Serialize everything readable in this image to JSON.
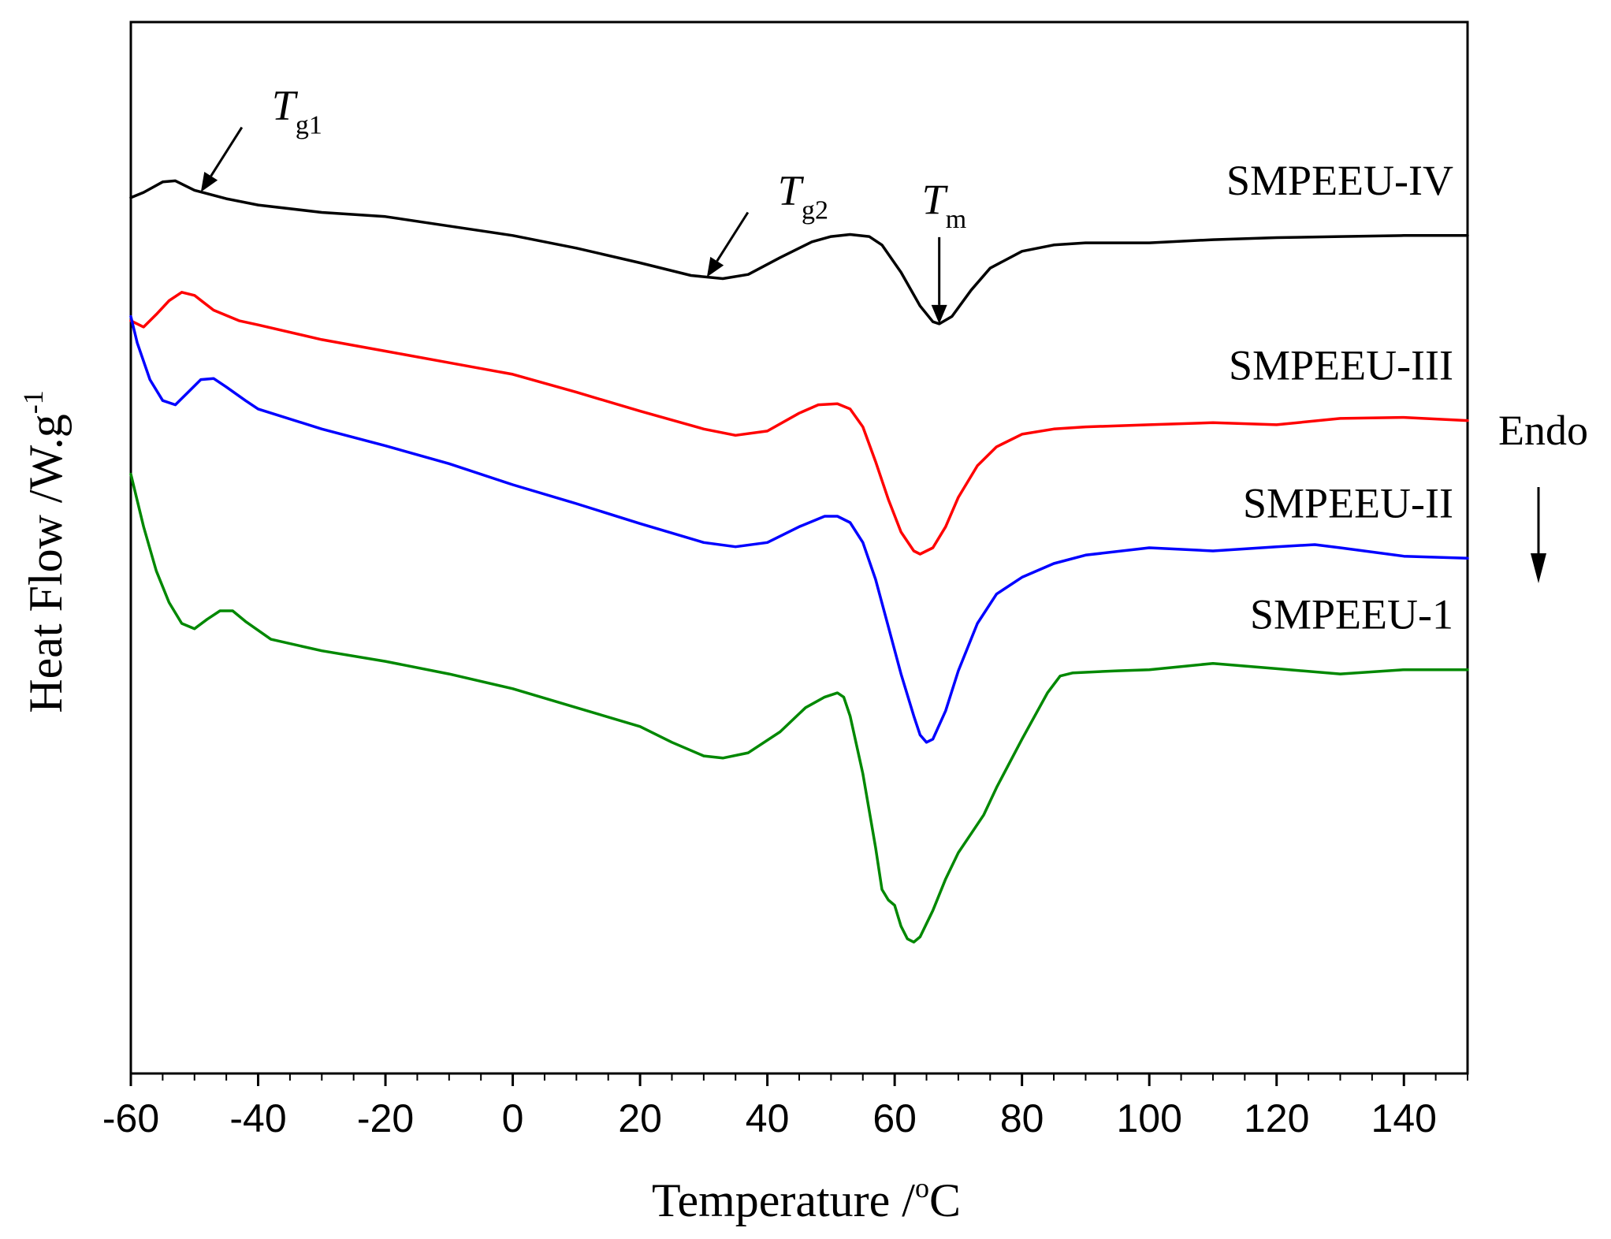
{
  "chart_data": {
    "type": "line",
    "title": "",
    "xlabel": "Temperature /°C",
    "xlabel_main": "Temperature /",
    "xlabel_degree": "o",
    "xlabel_unit": "C",
    "ylabel": "Heat Flow /W.g-1",
    "ylabel_main": "Heat Flow /W.g",
    "ylabel_exp": "-1",
    "xlim": [
      -60,
      150
    ],
    "ylim": [
      0,
      1
    ],
    "x_ticks": [
      -60,
      -40,
      -20,
      0,
      20,
      40,
      60,
      80,
      100,
      120,
      140
    ],
    "y_ticks_labeled": false,
    "grid": false,
    "endo_label": "Endo",
    "series": [
      {
        "name": "SMPEEU-IV",
        "color": "#000000",
        "points": [
          [
            -60,
            0.833
          ],
          [
            -58,
            0.838
          ],
          [
            -55,
            0.848
          ],
          [
            -53,
            0.849
          ],
          [
            -50,
            0.84
          ],
          [
            -45,
            0.832
          ],
          [
            -40,
            0.826
          ],
          [
            -30,
            0.819
          ],
          [
            -20,
            0.815
          ],
          [
            -10,
            0.806
          ],
          [
            0,
            0.797
          ],
          [
            10,
            0.785
          ],
          [
            20,
            0.771
          ],
          [
            28,
            0.759
          ],
          [
            33,
            0.756
          ],
          [
            37,
            0.76
          ],
          [
            42,
            0.776
          ],
          [
            47,
            0.791
          ],
          [
            50,
            0.796
          ],
          [
            53,
            0.798
          ],
          [
            56,
            0.796
          ],
          [
            58,
            0.788
          ],
          [
            61,
            0.762
          ],
          [
            64,
            0.73
          ],
          [
            66,
            0.715
          ],
          [
            67,
            0.713
          ],
          [
            69,
            0.72
          ],
          [
            72,
            0.745
          ],
          [
            75,
            0.766
          ],
          [
            80,
            0.782
          ],
          [
            85,
            0.788
          ],
          [
            90,
            0.79
          ],
          [
            100,
            0.79
          ],
          [
            110,
            0.793
          ],
          [
            120,
            0.795
          ],
          [
            130,
            0.796
          ],
          [
            140,
            0.797
          ],
          [
            150,
            0.797
          ]
        ]
      },
      {
        "name": "SMPEEU-III",
        "color": "#ff0000",
        "points": [
          [
            -60,
            0.716
          ],
          [
            -58,
            0.71
          ],
          [
            -56,
            0.722
          ],
          [
            -54,
            0.735
          ],
          [
            -52,
            0.743
          ],
          [
            -50,
            0.74
          ],
          [
            -47,
            0.726
          ],
          [
            -43,
            0.716
          ],
          [
            -40,
            0.712
          ],
          [
            -30,
            0.698
          ],
          [
            -20,
            0.687
          ],
          [
            -10,
            0.676
          ],
          [
            0,
            0.665
          ],
          [
            10,
            0.648
          ],
          [
            20,
            0.63
          ],
          [
            30,
            0.613
          ],
          [
            35,
            0.607
          ],
          [
            40,
            0.611
          ],
          [
            45,
            0.628
          ],
          [
            48,
            0.636
          ],
          [
            51,
            0.637
          ],
          [
            53,
            0.632
          ],
          [
            55,
            0.615
          ],
          [
            57,
            0.582
          ],
          [
            59,
            0.546
          ],
          [
            61,
            0.515
          ],
          [
            63,
            0.497
          ],
          [
            64,
            0.494
          ],
          [
            66,
            0.5
          ],
          [
            68,
            0.52
          ],
          [
            70,
            0.548
          ],
          [
            73,
            0.578
          ],
          [
            76,
            0.596
          ],
          [
            80,
            0.608
          ],
          [
            85,
            0.613
          ],
          [
            90,
            0.615
          ],
          [
            100,
            0.617
          ],
          [
            110,
            0.619
          ],
          [
            120,
            0.617
          ],
          [
            130,
            0.623
          ],
          [
            140,
            0.624
          ],
          [
            150,
            0.621
          ]
        ]
      },
      {
        "name": "SMPEEU-II",
        "color": "#0000ff",
        "points": [
          [
            -60,
            0.72
          ],
          [
            -59,
            0.695
          ],
          [
            -57,
            0.66
          ],
          [
            -55,
            0.64
          ],
          [
            -53,
            0.636
          ],
          [
            -51,
            0.648
          ],
          [
            -49,
            0.66
          ],
          [
            -47,
            0.661
          ],
          [
            -45,
            0.653
          ],
          [
            -42,
            0.64
          ],
          [
            -40,
            0.632
          ],
          [
            -30,
            0.613
          ],
          [
            -20,
            0.597
          ],
          [
            -10,
            0.58
          ],
          [
            0,
            0.56
          ],
          [
            10,
            0.542
          ],
          [
            20,
            0.523
          ],
          [
            30,
            0.505
          ],
          [
            35,
            0.501
          ],
          [
            40,
            0.505
          ],
          [
            45,
            0.52
          ],
          [
            49,
            0.53
          ],
          [
            51,
            0.53
          ],
          [
            53,
            0.524
          ],
          [
            55,
            0.505
          ],
          [
            57,
            0.47
          ],
          [
            59,
            0.425
          ],
          [
            61,
            0.38
          ],
          [
            63,
            0.34
          ],
          [
            64,
            0.322
          ],
          [
            65,
            0.315
          ],
          [
            66,
            0.318
          ],
          [
            68,
            0.345
          ],
          [
            70,
            0.383
          ],
          [
            73,
            0.428
          ],
          [
            76,
            0.456
          ],
          [
            80,
            0.472
          ],
          [
            85,
            0.485
          ],
          [
            90,
            0.493
          ],
          [
            100,
            0.5
          ],
          [
            110,
            0.497
          ],
          [
            120,
            0.501
          ],
          [
            126,
            0.503
          ],
          [
            130,
            0.5
          ],
          [
            140,
            0.492
          ],
          [
            150,
            0.49
          ]
        ]
      },
      {
        "name": "SMPEEU-1",
        "color": "#008800",
        "points": [
          [
            -60,
            0.57
          ],
          [
            -58,
            0.52
          ],
          [
            -56,
            0.478
          ],
          [
            -54,
            0.448
          ],
          [
            -52,
            0.428
          ],
          [
            -50,
            0.423
          ],
          [
            -48,
            0.432
          ],
          [
            -46,
            0.44
          ],
          [
            -44,
            0.44
          ],
          [
            -42,
            0.43
          ],
          [
            -38,
            0.413
          ],
          [
            -30,
            0.402
          ],
          [
            -20,
            0.392
          ],
          [
            -10,
            0.38
          ],
          [
            0,
            0.366
          ],
          [
            10,
            0.348
          ],
          [
            20,
            0.33
          ],
          [
            25,
            0.315
          ],
          [
            30,
            0.302
          ],
          [
            33,
            0.3
          ],
          [
            37,
            0.305
          ],
          [
            42,
            0.325
          ],
          [
            46,
            0.348
          ],
          [
            49,
            0.358
          ],
          [
            51,
            0.362
          ],
          [
            52,
            0.358
          ],
          [
            53,
            0.34
          ],
          [
            55,
            0.285
          ],
          [
            57,
            0.215
          ],
          [
            58,
            0.175
          ],
          [
            59,
            0.165
          ],
          [
            60,
            0.16
          ],
          [
            61,
            0.14
          ],
          [
            62,
            0.128
          ],
          [
            63,
            0.125
          ],
          [
            64,
            0.13
          ],
          [
            66,
            0.155
          ],
          [
            68,
            0.185
          ],
          [
            70,
            0.21
          ],
          [
            72,
            0.228
          ],
          [
            74,
            0.246
          ],
          [
            76,
            0.272
          ],
          [
            80,
            0.318
          ],
          [
            84,
            0.362
          ],
          [
            86,
            0.378
          ],
          [
            88,
            0.381
          ],
          [
            95,
            0.383
          ],
          [
            100,
            0.384
          ],
          [
            110,
            0.39
          ],
          [
            120,
            0.385
          ],
          [
            130,
            0.38
          ],
          [
            140,
            0.384
          ],
          [
            150,
            0.384
          ]
        ]
      }
    ],
    "annotations": [
      {
        "symbol": "T",
        "sub": "g1",
        "series": "SMPEEU-IV",
        "x": -49
      },
      {
        "symbol": "T",
        "sub": "g2",
        "series": "SMPEEU-IV",
        "x": 30.5
      },
      {
        "symbol": "T",
        "sub": "m",
        "series": "SMPEEU-IV",
        "x": 67
      }
    ]
  }
}
